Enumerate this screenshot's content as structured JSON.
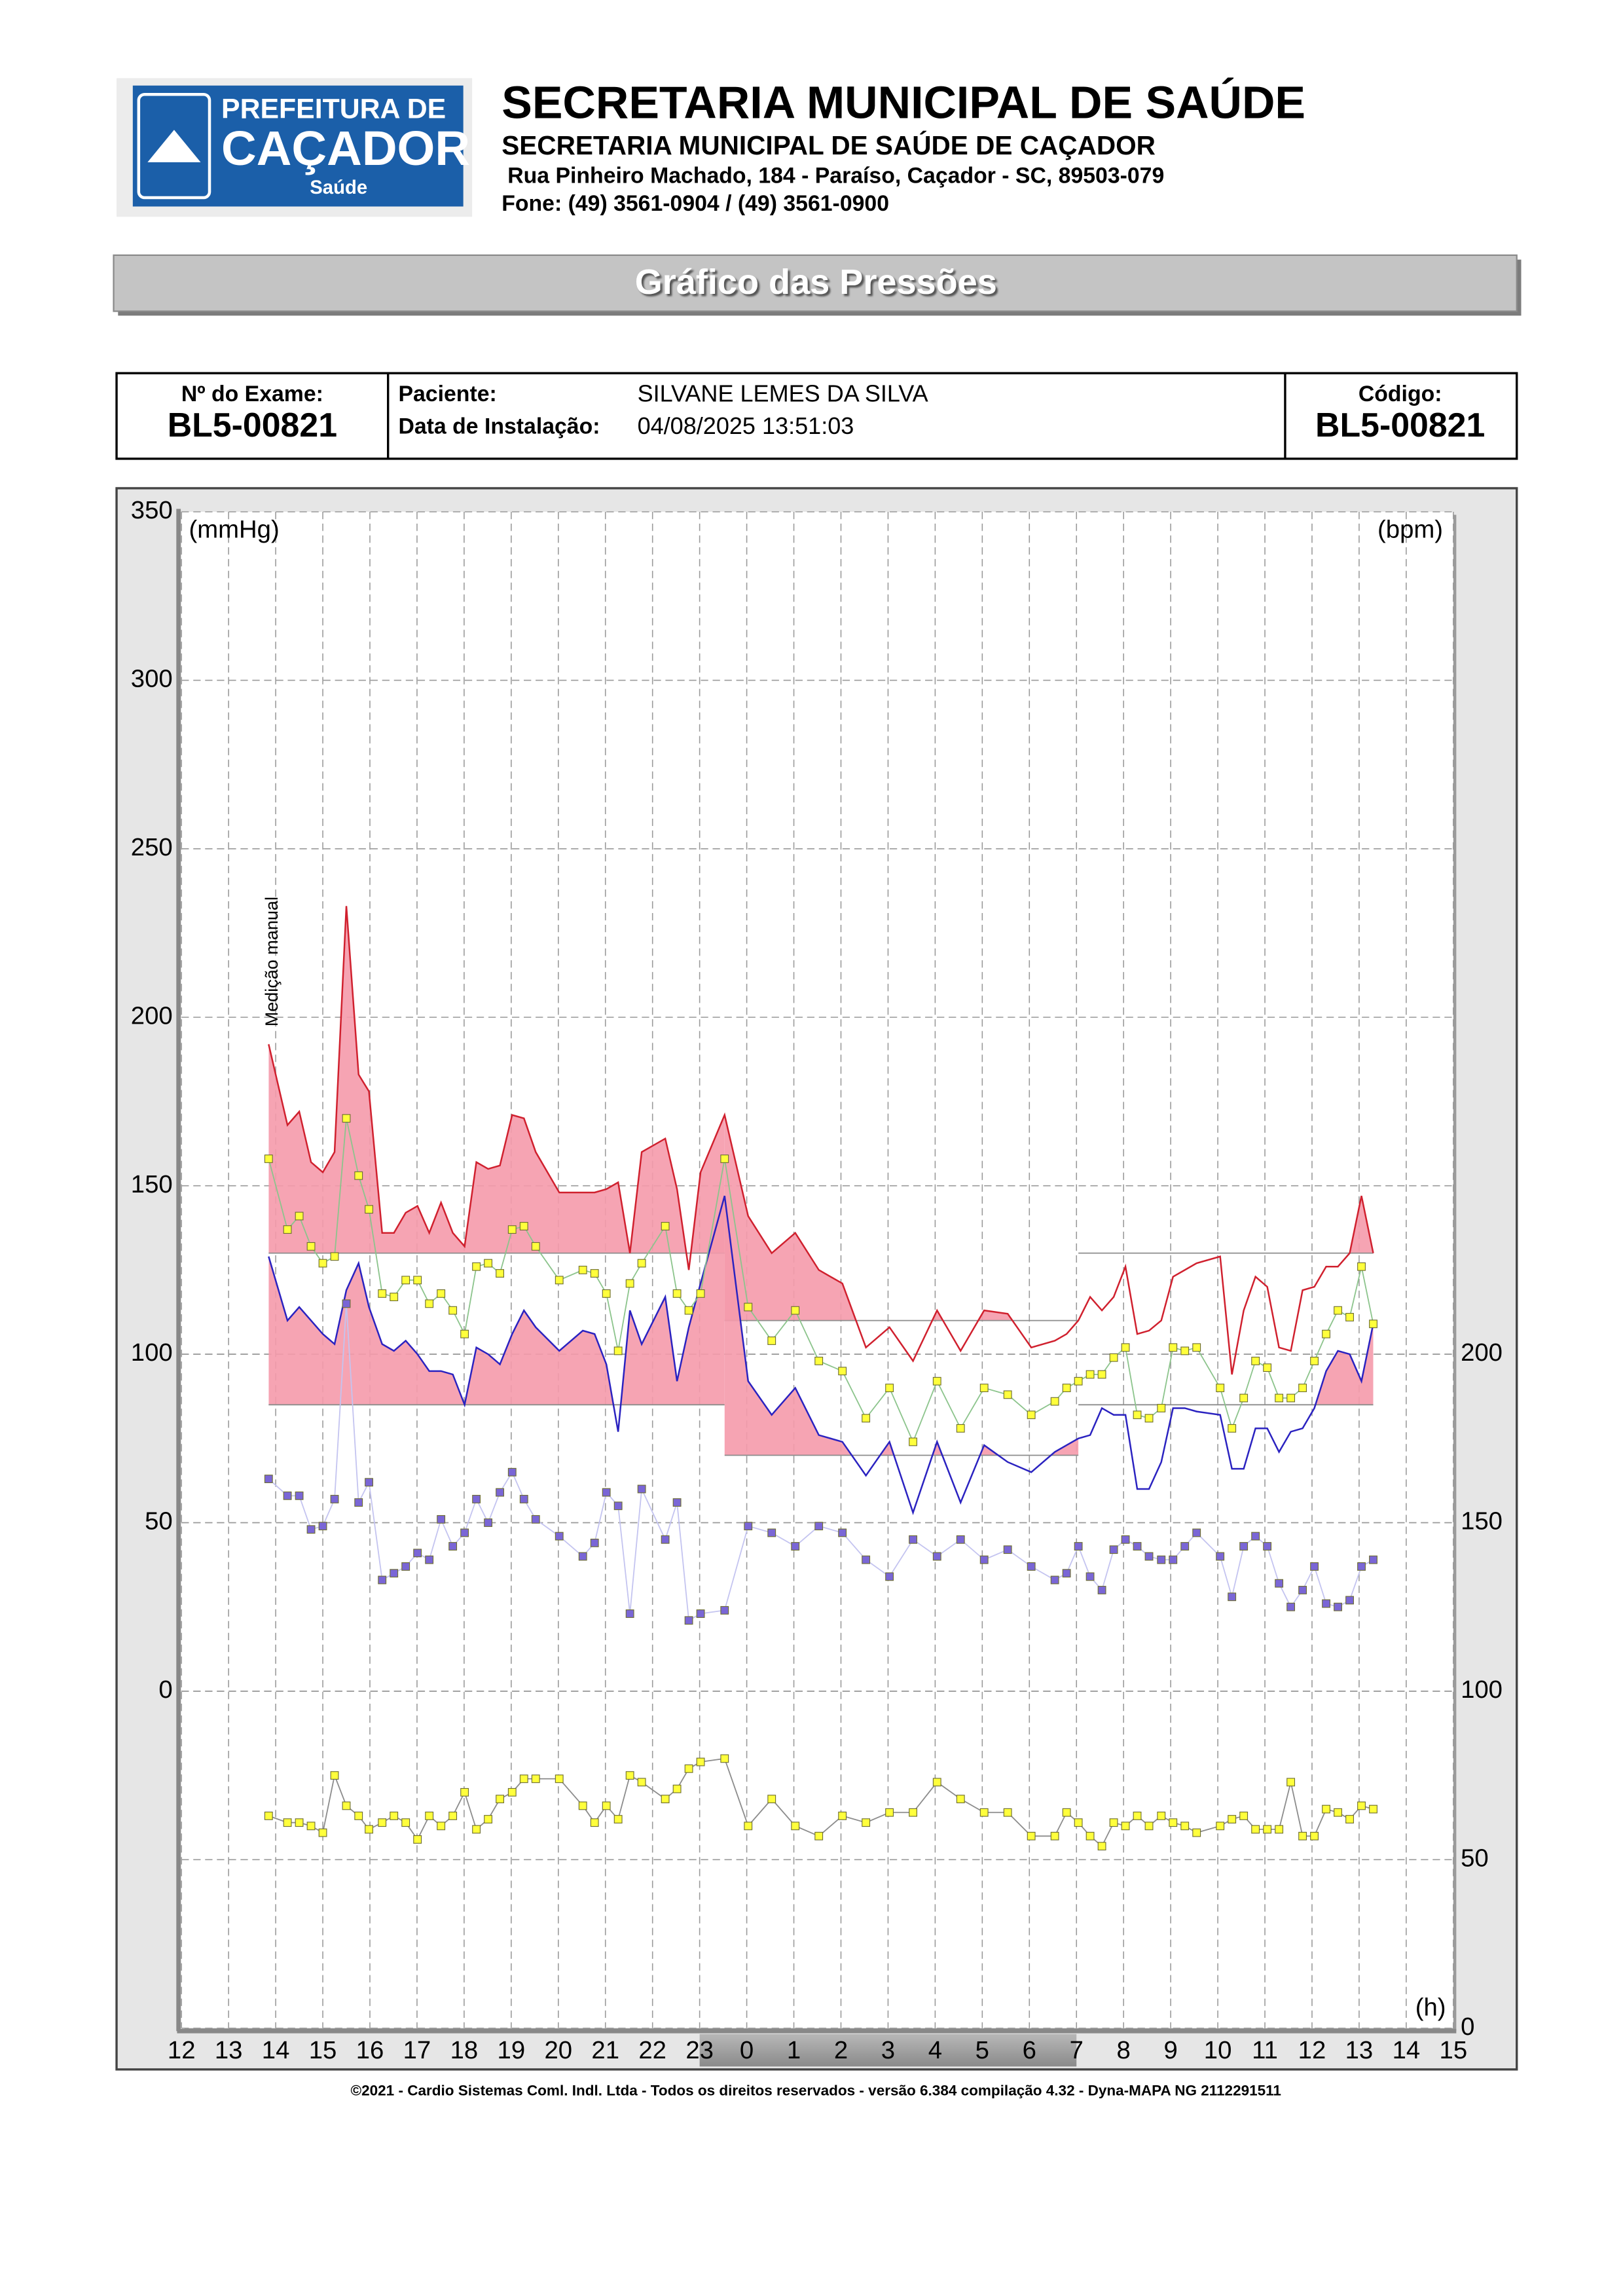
{
  "header": {
    "logo": {
      "line1": "PREFEITURA DE",
      "line2": "CAÇADOR",
      "line3": "Saúde"
    },
    "title": "SECRETARIA MUNICIPAL DE SAÚDE",
    "subtitle": "SECRETARIA MUNICIPAL DE SAÚDE DE CAÇADOR",
    "address": "Rua Pinheiro Machado, 184 - Paraíso, Caçador - SC, 89503-079",
    "phone": "Fone: (49) 3561-0904  / (49) 3561-0900"
  },
  "banner": "Gráfico das Pressões",
  "exam": {
    "number_label": "Nº do Exame:",
    "number": "BL5-00821",
    "patient_label": "Paciente:",
    "patient": "SILVANE LEMES DA SILVA",
    "install_label": "Data de Instalação:",
    "install": "04/08/2025 13:51:03",
    "code_label": "Código:",
    "code": "BL5-00821"
  },
  "chart_data": {
    "type": "line",
    "y_label": "(mmHg)",
    "y2_label": "(bpm)",
    "x_label": "(h)",
    "xlim": [
      12,
      39
    ],
    "xticks": [
      12,
      13,
      14,
      15,
      16,
      17,
      18,
      19,
      20,
      21,
      22,
      23,
      {
        "value": 24,
        "label": "0"
      },
      {
        "value": 25,
        "label": "1"
      },
      {
        "value": 26,
        "label": "2"
      },
      {
        "value": 27,
        "label": "3"
      },
      {
        "value": 28,
        "label": "4"
      },
      {
        "value": 29,
        "label": "5"
      },
      {
        "value": 30,
        "label": "6"
      },
      {
        "value": 31,
        "label": "7"
      },
      {
        "value": 32,
        "label": "8"
      },
      {
        "value": 33,
        "label": "9"
      },
      {
        "value": 34,
        "label": "10"
      },
      {
        "value": 35,
        "label": "11"
      },
      {
        "value": 36,
        "label": "12"
      },
      {
        "value": 37,
        "label": "13"
      },
      {
        "value": 38,
        "label": "14"
      },
      {
        "value": 39,
        "label": "15"
      }
    ],
    "ylim": [
      -100,
      350
    ],
    "yticks": [
      0,
      50,
      100,
      150,
      200,
      250,
      300,
      350
    ],
    "y2lim": [
      0,
      450
    ],
    "y2ticks": [
      0,
      50,
      100,
      150,
      200
    ],
    "grid": true,
    "sleep_period": [
      23,
      31
    ],
    "periods": [
      [
        13.85,
        23.53
      ],
      [
        23.53,
        31.04
      ],
      [
        31.04,
        37.3
      ]
    ],
    "annotation": {
      "text": "Medição manual",
      "x": 13.85
    },
    "x": [
      13.85,
      14.25,
      14.5,
      14.75,
      15.0,
      15.25,
      15.5,
      15.76,
      15.98,
      16.26,
      16.51,
      16.76,
      17.01,
      17.26,
      17.51,
      17.76,
      18.01,
      18.26,
      18.51,
      18.76,
      19.02,
      19.27,
      19.52,
      20.02,
      20.52,
      20.77,
      21.02,
      21.27,
      21.52,
      21.77,
      22.27,
      22.52,
      22.77,
      23.02,
      23.53,
      24.03,
      24.53,
      25.03,
      25.53,
      26.03,
      26.53,
      27.03,
      27.53,
      28.04,
      28.54,
      29.04,
      29.54,
      30.04,
      30.54,
      30.79,
      31.04,
      31.29,
      31.54,
      31.79,
      32.04,
      32.29,
      32.54,
      32.8,
      33.05,
      33.3,
      33.55,
      34.05,
      34.3,
      34.55,
      34.8,
      35.05,
      35.3,
      35.55,
      35.8,
      36.05,
      36.3,
      36.55,
      36.8,
      37.05,
      37.3
    ],
    "series": [
      {
        "line_color": "#d0202e",
        "fill_color": "#f59aab",
        "thresholds": [
          130,
          110,
          130
        ],
        "values": [
          192,
          168,
          172,
          157,
          154,
          160,
          233,
          183,
          178,
          136,
          136,
          142,
          144,
          136,
          145,
          136,
          132,
          157,
          155,
          156,
          171,
          170,
          160,
          148,
          148,
          148,
          149,
          151,
          130,
          160,
          164,
          149,
          125,
          154,
          171,
          141,
          130,
          136,
          125,
          121,
          102,
          108,
          98,
          113,
          101,
          113,
          112,
          102,
          104,
          106,
          110,
          117,
          113,
          117,
          126,
          106,
          107,
          110,
          123,
          125,
          127,
          129,
          94,
          113,
          123,
          120,
          102,
          101,
          119,
          120,
          126,
          126,
          130,
          147,
          130
        ]
      },
      {
        "line_color": "#2a22c0",
        "fill_color": "#f59aab",
        "thresholds": [
          85,
          70,
          85
        ],
        "values": [
          129,
          110,
          114,
          110,
          106,
          103,
          119,
          127,
          114,
          103,
          101,
          104,
          100,
          95,
          95,
          94,
          85,
          102,
          100,
          97,
          106,
          113,
          108,
          101,
          107,
          106,
          97,
          77,
          113,
          103,
          117,
          92,
          108,
          121,
          147,
          92,
          82,
          90,
          76,
          74,
          64,
          74,
          53,
          74,
          56,
          73,
          68,
          65,
          71,
          73,
          75,
          76,
          84,
          82,
          82,
          60,
          60,
          68,
          84,
          84,
          83,
          82,
          66,
          66,
          78,
          78,
          71,
          77,
          78,
          84,
          95,
          101,
          100,
          92,
          109
        ]
      },
      {
        "line_color": "#8cc48c",
        "marker_color": "#ffff3c",
        "values": [
          158,
          137,
          141,
          132,
          127,
          129,
          170,
          153,
          143,
          118,
          117,
          122,
          122,
          115,
          118,
          113,
          106,
          126,
          127,
          124,
          137,
          138,
          132,
          122,
          125,
          124,
          118,
          101,
          121,
          127,
          138,
          118,
          113,
          118,
          158,
          114,
          104,
          113,
          98,
          95,
          81,
          90,
          74,
          92,
          78,
          90,
          88,
          82,
          86,
          90,
          92,
          94,
          94,
          99,
          102,
          82,
          81,
          84,
          102,
          101,
          102,
          90,
          78,
          87,
          98,
          96,
          87,
          87,
          90,
          98,
          106,
          113,
          111,
          126,
          109
        ]
      },
      {
        "line_color": "#c4c4f0",
        "marker_color": "#7a66d6",
        "values": [
          63,
          58,
          58,
          48,
          49,
          57,
          115,
          56,
          62,
          33,
          35,
          37,
          41,
          39,
          51,
          43,
          47,
          57,
          50,
          59,
          65,
          57,
          51,
          46,
          40,
          44,
          59,
          55,
          23,
          60,
          45,
          56,
          21,
          23,
          24,
          49,
          47,
          43,
          49,
          47,
          39,
          34,
          45,
          40,
          45,
          39,
          42,
          37,
          33,
          35,
          43,
          34,
          30,
          42,
          45,
          43,
          40,
          39,
          39,
          43,
          47,
          40,
          28,
          43,
          46,
          43,
          32,
          25,
          30,
          37,
          26,
          25,
          27,
          37,
          39
        ]
      },
      {
        "line_color": "#8c8c8c",
        "marker_color": "#ffff3c",
        "axis": "y2",
        "values": [
          63,
          61,
          61,
          60,
          58,
          75,
          66,
          63,
          59,
          61,
          63,
          61,
          56,
          63,
          60,
          63,
          70,
          59,
          62,
          68,
          70,
          74,
          74,
          74,
          66,
          61,
          66,
          62,
          75,
          73,
          68,
          71,
          77,
          79,
          80,
          60,
          68,
          60,
          57,
          63,
          61,
          64,
          64,
          73,
          68,
          64,
          64,
          57,
          57,
          64,
          61,
          57,
          54,
          61,
          60,
          63,
          60,
          63,
          61,
          60,
          58,
          60,
          62,
          63,
          59,
          59,
          59,
          73,
          57,
          57,
          65,
          64,
          62,
          66,
          65
        ]
      }
    ]
  },
  "footer": "©2021 - Cardio Sistemas Coml. Indl. Ltda - Todos os direitos reservados - versão 6.384 compilação 4.32 - Dyna-MAPA NG 2112291511"
}
